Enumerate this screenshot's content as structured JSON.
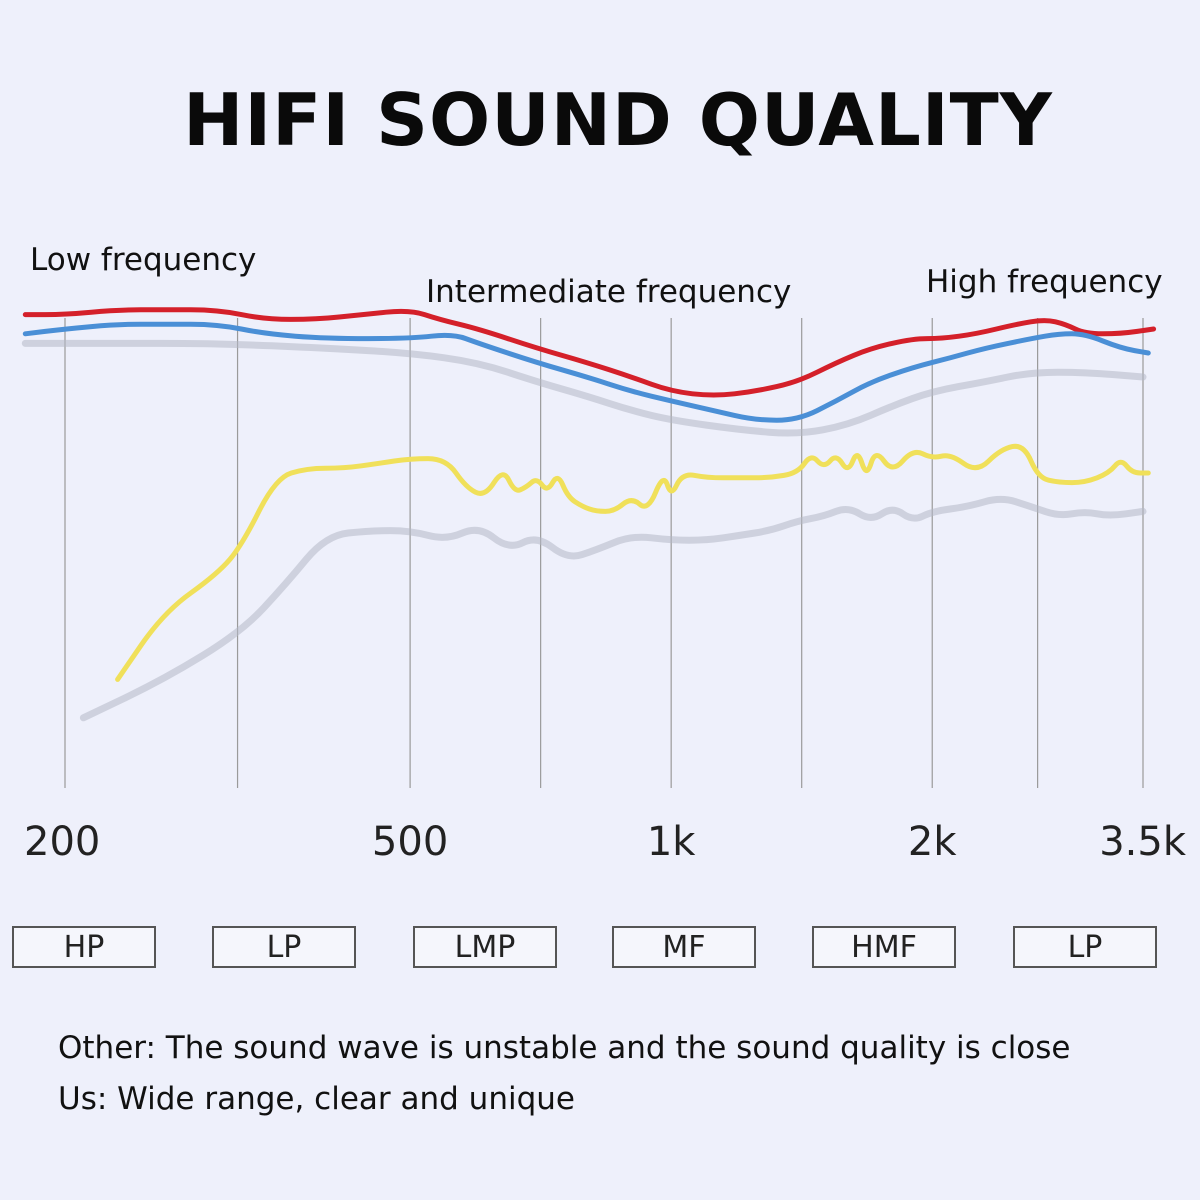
{
  "title": "HIFI SOUND QUALITY",
  "band_labels": {
    "low": "Low frequency",
    "intermediate": "Intermediate frequency",
    "high": "High frequency"
  },
  "filters": [
    "HP",
    "LP",
    "LMP",
    "MF",
    "HMF",
    "LP"
  ],
  "notes": {
    "other": "Other: The sound wave is unstable and the sound quality is close",
    "us": "Us: Wide range, clear and unique"
  },
  "colors": {
    "red": "#d4202a",
    "blue": "#4a8fd6",
    "yellow": "#f0e05a",
    "shadow": "#b4b8c6",
    "grid": "#9a9a9a",
    "background": "#eef0fb"
  },
  "chart_data": {
    "type": "line",
    "x_scale": "log",
    "xlim": [
      200,
      3500
    ],
    "ylim": [
      0,
      100
    ],
    "grid": "vertical",
    "ticks": [
      {
        "value": 200,
        "label": "200"
      },
      {
        "value": 500,
        "label": "500"
      },
      {
        "value": 1000,
        "label": "1k"
      },
      {
        "value": 2000,
        "label": "2k"
      },
      {
        "value": 3500,
        "label": "3.5k"
      }
    ],
    "series": [
      {
        "color": "#d4202a",
        "x": [
          180,
          200,
          230,
          260,
          300,
          340,
          390,
          440,
          500,
          540,
          600,
          700,
          800,
          900,
          1000,
          1120,
          1250,
          1400,
          1550,
          1700,
          1900,
          2050,
          2250,
          2500,
          2700,
          2850,
          3000,
          3300,
          3600
        ],
        "y": [
          98,
          98,
          99,
          99,
          99,
          97,
          97,
          98,
          99,
          97,
          95,
          91,
          88,
          85,
          82,
          81,
          82,
          84,
          88,
          91,
          93,
          93,
          94,
          96,
          97,
          96,
          94,
          94,
          95
        ]
      },
      {
        "color": "#4a8fd6",
        "x": [
          180,
          200,
          230,
          260,
          300,
          340,
          400,
          500,
          560,
          600,
          700,
          800,
          900,
          1000,
          1120,
          1250,
          1400,
          1550,
          1700,
          1900,
          2100,
          2300,
          2600,
          2800,
          3000,
          3300,
          3550
        ],
        "y": [
          94,
          95,
          96,
          96,
          96,
          94,
          93,
          93,
          94,
          92,
          88,
          85,
          82,
          80,
          78,
          76,
          76,
          80,
          84,
          87,
          89,
          91,
          93,
          94,
          94,
          91,
          90
        ]
      },
      {
        "color": "#f0e05a",
        "x": [
          230,
          260,
          300,
          320,
          350,
          380,
          420,
          460,
          500,
          550,
          580,
          610,
          640,
          660,
          680,
          700,
          720,
          740,
          760,
          790,
          820,
          860,
          900,
          940,
          980,
          1000,
          1030,
          1100,
          1200,
          1300,
          1400,
          1450,
          1500,
          1550,
          1600,
          1640,
          1680,
          1720,
          1800,
          1900,
          2000,
          2100,
          2250,
          2400,
          2550,
          2650,
          2800,
          3000,
          3200,
          3300,
          3400,
          3550
        ],
        "y": [
          22,
          36,
          44,
          50,
          64,
          66,
          66,
          67,
          68,
          68,
          62,
          60,
          66,
          61,
          62,
          64,
          61,
          65,
          60,
          58,
          57,
          57,
          60,
          57,
          65,
          60,
          65,
          64,
          64,
          64,
          65,
          69,
          66,
          69,
          65,
          70,
          64,
          70,
          65,
          70,
          68,
          69,
          65,
          70,
          71,
          64,
          63,
          63,
          65,
          68,
          65,
          65
        ]
      },
      {
        "color": "#b4b8c6",
        "x": [
          180,
          220,
          300,
          400,
          500,
          600,
          700,
          800,
          900,
          1000,
          1200,
          1400,
          1600,
          1800,
          2000,
          2300,
          2600,
          3000,
          3500
        ],
        "y": [
          92,
          92,
          92,
          91,
          90,
          88,
          84,
          81,
          78,
          76,
          74,
          73,
          75,
          79,
          82,
          84,
          86,
          86,
          85
        ]
      },
      {
        "color": "#b4b8c6",
        "x": [
          210,
          260,
          320,
          360,
          400,
          450,
          500,
          550,
          600,
          650,
          700,
          760,
          820,
          900,
          1000,
          1100,
          1200,
          1300,
          1400,
          1500,
          1600,
          1700,
          1800,
          1900,
          2000,
          2200,
          2400,
          2600,
          2800,
          3000,
          3200,
          3500
        ],
        "y": [
          14,
          22,
          32,
          42,
          52,
          53,
          53,
          51,
          54,
          49,
          52,
          47,
          49,
          52,
          51,
          51,
          52,
          53,
          55,
          56,
          58,
          55,
          58,
          55,
          57,
          58,
          60,
          58,
          56,
          57,
          56,
          57
        ]
      }
    ]
  }
}
